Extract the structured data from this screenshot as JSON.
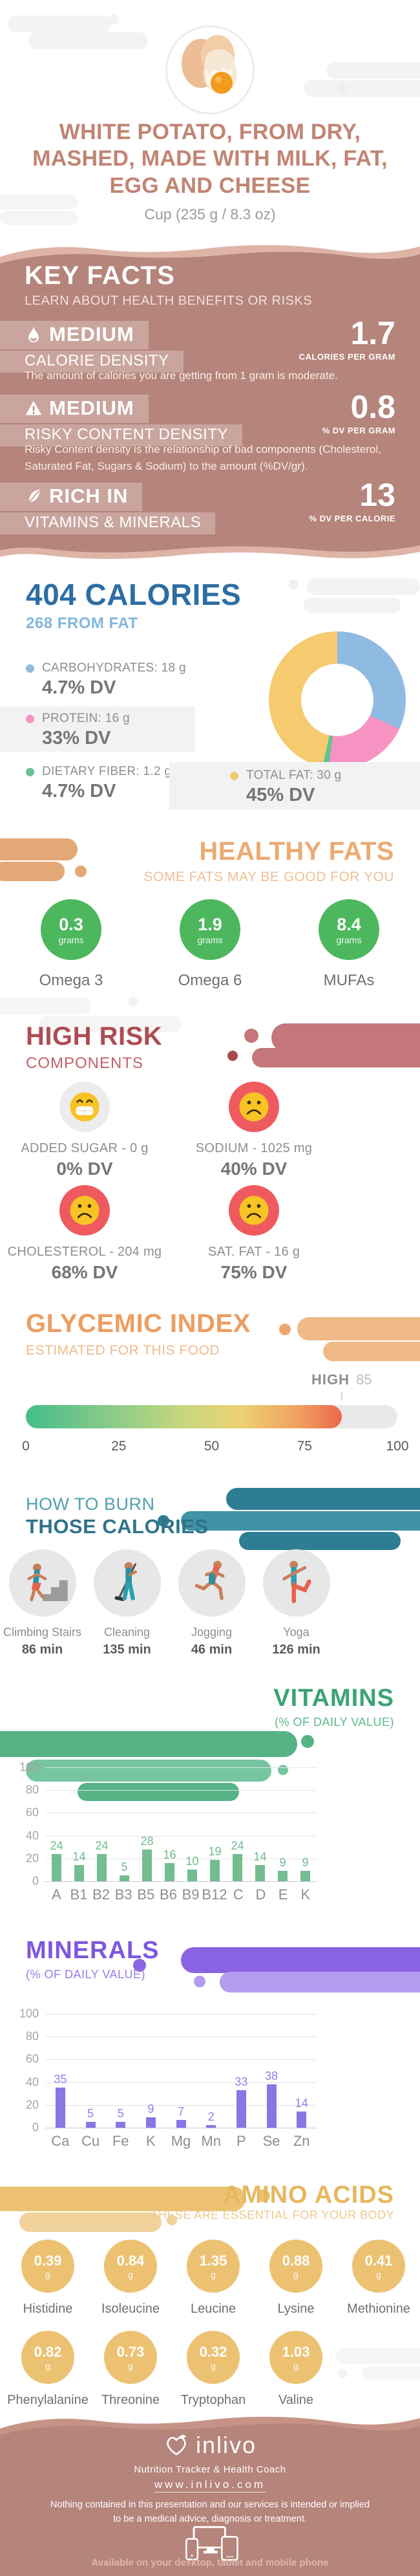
{
  "header": {
    "title": "WHITE POTATO, FROM DRY, MASHED, MADE WITH MILK, FAT, EGG AND CHEESE",
    "serving": "Cup (235 g / 8.3 oz)"
  },
  "key_facts": {
    "title": "KEY FACTS",
    "subtitle": "LEARN ABOUT HEALTH BENEFITS OR RISKS",
    "background_color": "#b5847a",
    "items": [
      {
        "icon": "flame-icon",
        "level": "MEDIUM",
        "name": "CALORIE DENSITY",
        "value": "1.7",
        "unit": "CALORIES PER GRAM",
        "description": "The amount of calories you are getting from 1 gram is moderate."
      },
      {
        "icon": "warning-icon",
        "level": "MEDIUM",
        "name": "RISKY CONTENT DENSITY",
        "value": "0.8",
        "unit": "% DV PER GRAM",
        "description": "Risky Content density is the relationship of bad components (Cholesterol, Saturated Fat, Sugars & Sodium) to the amount (%DV/gr)."
      },
      {
        "icon": "leaf-icon",
        "level": "RICH IN",
        "name": "VITAMINS & MINERALS",
        "value": "13",
        "unit": "% DV PER CALORIE",
        "description": ""
      }
    ]
  },
  "calories": {
    "title": "404 CALORIES",
    "subtitle": "268 FROM FAT",
    "title_color": "#2d6da3",
    "legend": [
      {
        "label": "CARBOHYDRATES: 18 g",
        "dv": "4.7% DV",
        "color": "#8fbbe3"
      },
      {
        "label": "PROTEIN: 16 g",
        "dv": "33% DV",
        "color": "#f793c2"
      },
      {
        "label": "DIETARY FIBER: 1.2 g",
        "dv": "4.7% DV",
        "color": "#67c28f"
      },
      {
        "label": "TOTAL FAT: 30 g",
        "dv": "45% DV",
        "color": "#f6ca6e"
      }
    ]
  },
  "healthy_fats": {
    "title": "HEALTHY FATS",
    "subtitle": "SOME FATS MAY BE GOOD FOR YOU",
    "accent": "#ecaa72",
    "blob_color": "#4db75e",
    "items": [
      {
        "value": "0.3",
        "unit": "grams",
        "label": "Omega 3"
      },
      {
        "value": "1.9",
        "unit": "grams",
        "label": "Omega 6"
      },
      {
        "value": "8.4",
        "unit": "grams",
        "label": "MUFAs"
      }
    ]
  },
  "high_risk": {
    "title": "HIGH RISK",
    "subtitle": "COMPONENTS",
    "accent": "#ad4c53",
    "items": [
      {
        "label": "ADDED SUGAR - 0 g",
        "dv": "0% DV",
        "mood": "happy"
      },
      {
        "label": "SODIUM - 1025 mg",
        "dv": "40% DV",
        "mood": "sad"
      },
      {
        "label": "CHOLESTEROL - 204 mg",
        "dv": "68% DV",
        "mood": "sad"
      },
      {
        "label": "SAT. FAT - 16 g",
        "dv": "75% DV",
        "mood": "sad"
      }
    ]
  },
  "glycemic": {
    "title": "GLYCEMIC INDEX",
    "subtitle": "ESTIMATED FOR THIS FOOD",
    "level_label": "HIGH",
    "value_label": "85"
  },
  "burn": {
    "title_line1": "HOW TO BURN",
    "title_line2": "THOSE CALORIES",
    "accent": "#2d7389",
    "activities": [
      {
        "name": "Climbing Stairs",
        "duration": "86 min",
        "icon": "climbing-stairs-icon"
      },
      {
        "name": "Cleaning",
        "duration": "135 min",
        "icon": "cleaning-icon"
      },
      {
        "name": "Jogging",
        "duration": "46 min",
        "icon": "jogging-icon"
      },
      {
        "name": "Yoga",
        "duration": "126 min",
        "icon": "yoga-icon"
      }
    ]
  },
  "vitamins_section": {
    "title": "VITAMINS",
    "subtitle": "(% OF DAILY VALUE)",
    "accent": "#3ba374"
  },
  "minerals_section": {
    "title": "MINERALS",
    "subtitle": "(% OF DAILY VALUE)",
    "accent": "#7e57df"
  },
  "amino_acids": {
    "title": "AMINO ACIDS",
    "subtitle": "THESE ARE ESSENTIAL FOR YOUR BODY",
    "accent": "#e6b75f",
    "blob_color": "#ecc272",
    "items": [
      {
        "name": "Histidine",
        "value": "0.39",
        "unit": "g"
      },
      {
        "name": "Isoleucine",
        "value": "0.84",
        "unit": "g"
      },
      {
        "name": "Leucine",
        "value": "1.35",
        "unit": "g"
      },
      {
        "name": "Lysine",
        "value": "0.88",
        "unit": "g"
      },
      {
        "name": "Methionine",
        "value": "0.41",
        "unit": "g"
      },
      {
        "name": "Phenylalanine",
        "value": "0.82",
        "unit": "g"
      },
      {
        "name": "Threonine",
        "value": "0.73",
        "unit": "g"
      },
      {
        "name": "Tryptophan",
        "value": "0.32",
        "unit": "g"
      },
      {
        "name": "Valine",
        "value": "1.03",
        "unit": "g"
      }
    ]
  },
  "footer": {
    "brand": "inlivo",
    "tagline": "Nutrition Tracker & Health Coach",
    "website": "www.inlivo.com",
    "disclaimer": "Nothing contained in this presentation and our services is intended or implied to be a medical advice, diagnosis or treatment.",
    "availability": "Available on your desktop, tablet and mobile phone",
    "background_color": "#b5847a"
  },
  "chart_data": [
    {
      "id": "macros_donut",
      "type": "pie",
      "title": "404 CALORIES",
      "subtitle": "268 FROM FAT",
      "labels": [
        "CARBOHYDRATES",
        "PROTEIN",
        "DIETARY FIBER",
        "TOTAL FAT"
      ],
      "grams": [
        18,
        16,
        1.2,
        30
      ],
      "percent_dv": [
        4.7,
        33,
        4.7,
        45
      ],
      "donut_share_pct": [
        32,
        20,
        1.5,
        46.5
      ],
      "colors": [
        "#8fbbe3",
        "#f793c2",
        "#67c28f",
        "#f6ca6e"
      ],
      "hole": true,
      "legend_position": "left"
    },
    {
      "id": "glycemic_index",
      "type": "gauge-bar",
      "label": "HIGH",
      "value": 85,
      "range": [
        0,
        100
      ],
      "ticks": [
        0,
        25,
        50,
        75,
        100
      ],
      "track_color": "#e9e9e9",
      "fill_gradient": [
        "#45bd8b",
        "#c8d77f",
        "#ecd173",
        "#f0a160",
        "#ed684c"
      ]
    },
    {
      "id": "vitamins",
      "type": "bar",
      "title": "VITAMINS (% OF DAILY VALUE)",
      "categories": [
        "A",
        "B1",
        "B2",
        "B3",
        "B5",
        "B6",
        "B9",
        "B12",
        "C",
        "D",
        "E",
        "K"
      ],
      "values": [
        24,
        14,
        24,
        5,
        28,
        16,
        10,
        19,
        24,
        14,
        9,
        9
      ],
      "ylim": [
        0,
        100
      ],
      "grid_step": 20,
      "grid": true,
      "bar_color": "#74bd90",
      "value_label_color": "#6fbb8e"
    },
    {
      "id": "minerals",
      "type": "bar",
      "title": "MINERALS (% OF DAILY VALUE)",
      "categories": [
        "Ca",
        "Cu",
        "Fe",
        "K",
        "Mg",
        "Mn",
        "P",
        "Se",
        "Zn"
      ],
      "values": [
        35,
        5,
        5,
        9,
        7,
        2,
        33,
        38,
        14
      ],
      "ylim": [
        0,
        100
      ],
      "grid_step": 20,
      "grid": true,
      "bar_color": "#8677e5",
      "value_label_color": "#8f7fe8"
    }
  ]
}
